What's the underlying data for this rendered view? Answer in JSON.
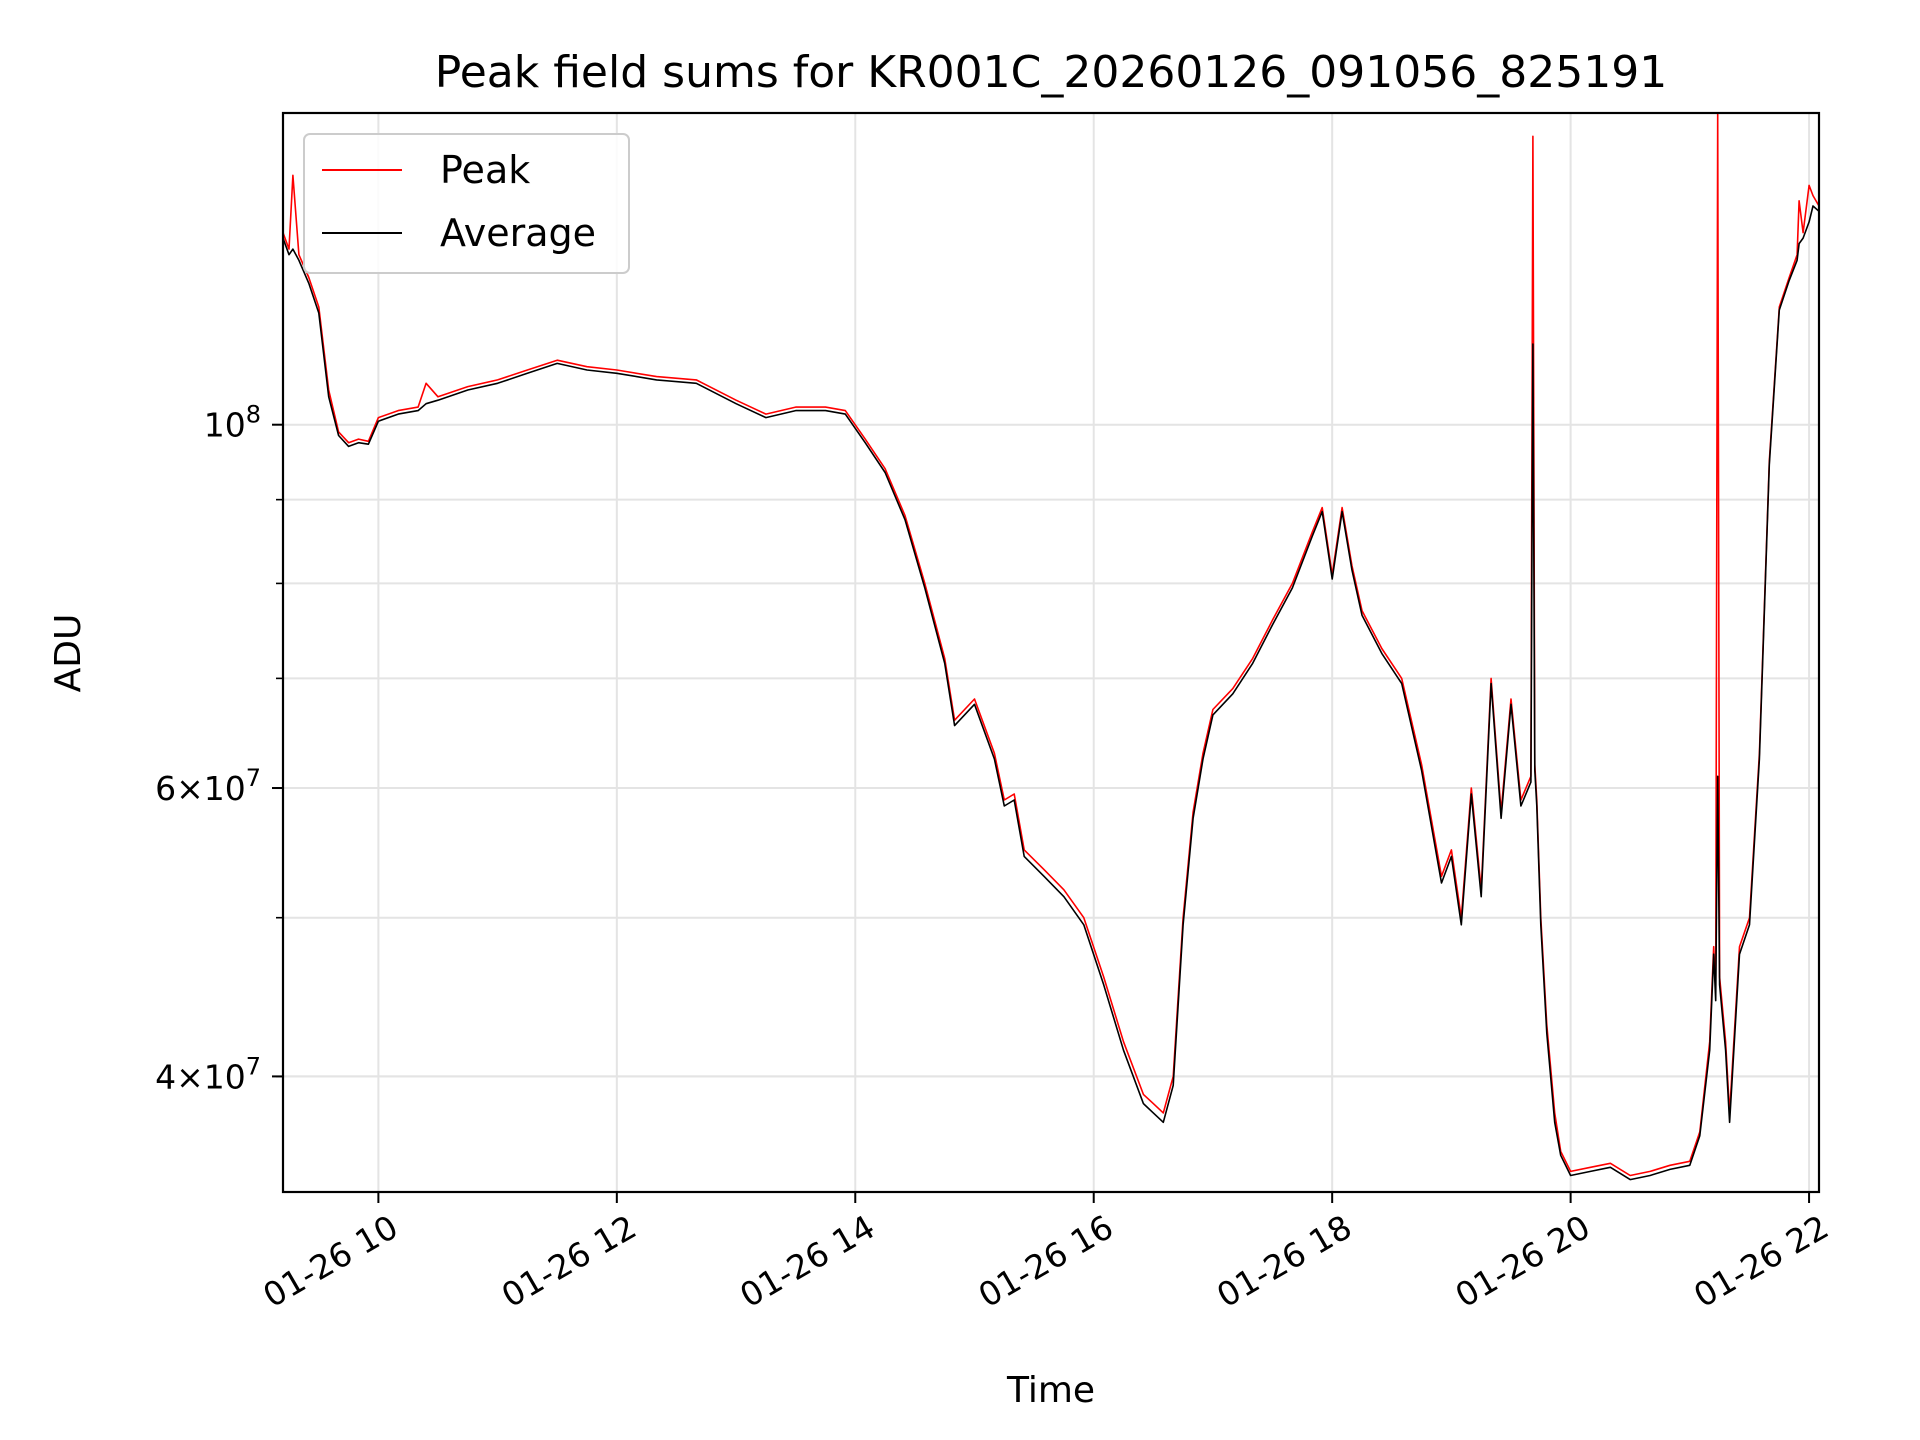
{
  "chart_data": {
    "type": "line",
    "title": "Peak field sums for KR001C_20260126_091056_825191",
    "xlabel": "Time",
    "ylabel": "ADU",
    "x_ticks": [
      "01-26 10",
      "01-26 12",
      "01-26 14",
      "01-26 16",
      "01-26 18",
      "01-26 20",
      "01-26 22"
    ],
    "y_ticks_major": [
      {
        "value": 100000000,
        "label_base": "10",
        "label_exp": "8"
      },
      {
        "value": 60000000,
        "label_base": "6×10",
        "label_exp": "7"
      },
      {
        "value": 40000000,
        "label_base": "4×10",
        "label_exp": "7"
      }
    ],
    "y_scale": "log",
    "xlim": [
      "2026-01-26 09:12",
      "2026-01-26 22:05"
    ],
    "ylim": [
      34000000,
      155000000
    ],
    "grid": true,
    "legend_position": "upper-left",
    "colors": {
      "Peak": "#ff0000",
      "Average": "#000000"
    },
    "series": [
      {
        "name": "Peak",
        "x": [
          "2026-01-26 09:12",
          "2026-01-26 09:15",
          "2026-01-26 09:17",
          "2026-01-26 09:20",
          "2026-01-26 09:25",
          "2026-01-26 09:30",
          "2026-01-26 09:35",
          "2026-01-26 09:40",
          "2026-01-26 09:45",
          "2026-01-26 09:50",
          "2026-01-26 09:55",
          "2026-01-26 10:00",
          "2026-01-26 10:10",
          "2026-01-26 10:20",
          "2026-01-26 10:24",
          "2026-01-26 10:30",
          "2026-01-26 10:45",
          "2026-01-26 11:00",
          "2026-01-26 11:15",
          "2026-01-26 11:30",
          "2026-01-26 11:45",
          "2026-01-26 12:00",
          "2026-01-26 12:20",
          "2026-01-26 12:40",
          "2026-01-26 13:00",
          "2026-01-26 13:15",
          "2026-01-26 13:30",
          "2026-01-26 13:45",
          "2026-01-26 13:55",
          "2026-01-26 14:05",
          "2026-01-26 14:15",
          "2026-01-26 14:25",
          "2026-01-26 14:35",
          "2026-01-26 14:45",
          "2026-01-26 14:50",
          "2026-01-26 15:00",
          "2026-01-26 15:10",
          "2026-01-26 15:15",
          "2026-01-26 15:20",
          "2026-01-26 15:25",
          "2026-01-26 15:35",
          "2026-01-26 15:45",
          "2026-01-26 15:55",
          "2026-01-26 16:05",
          "2026-01-26 16:15",
          "2026-01-26 16:25",
          "2026-01-26 16:30",
          "2026-01-26 16:35",
          "2026-01-26 16:40",
          "2026-01-26 16:45",
          "2026-01-26 16:50",
          "2026-01-26 16:55",
          "2026-01-26 17:00",
          "2026-01-26 17:10",
          "2026-01-26 17:20",
          "2026-01-26 17:30",
          "2026-01-26 17:40",
          "2026-01-26 17:50",
          "2026-01-26 17:55",
          "2026-01-26 18:00",
          "2026-01-26 18:05",
          "2026-01-26 18:10",
          "2026-01-26 18:15",
          "2026-01-26 18:25",
          "2026-01-26 18:35",
          "2026-01-26 18:45",
          "2026-01-26 18:55",
          "2026-01-26 19:00",
          "2026-01-26 19:05",
          "2026-01-26 19:10",
          "2026-01-26 19:15",
          "2026-01-26 19:20",
          "2026-01-26 19:25",
          "2026-01-26 19:30",
          "2026-01-26 19:35",
          "2026-01-26 19:40",
          "2026-01-26 19:41",
          "2026-01-26 19:42",
          "2026-01-26 19:43",
          "2026-01-26 19:45",
          "2026-01-26 19:48",
          "2026-01-26 19:52",
          "2026-01-26 19:55",
          "2026-01-26 20:00",
          "2026-01-26 20:10",
          "2026-01-26 20:20",
          "2026-01-26 20:30",
          "2026-01-26 20:40",
          "2026-01-26 20:50",
          "2026-01-26 21:00",
          "2026-01-26 21:05",
          "2026-01-26 21:10",
          "2026-01-26 21:12",
          "2026-01-26 21:13",
          "2026-01-26 21:14",
          "2026-01-26 21:15",
          "2026-01-26 21:18",
          "2026-01-26 21:20",
          "2026-01-26 21:25",
          "2026-01-26 21:30",
          "2026-01-26 21:35",
          "2026-01-26 21:40",
          "2026-01-26 21:45",
          "2026-01-26 21:50",
          "2026-01-26 21:54",
          "2026-01-26 21:55",
          "2026-01-26 21:57",
          "2026-01-26 22:00",
          "2026-01-26 22:02",
          "2026-01-26 22:05"
        ],
        "y": [
          131000000,
          128000000,
          142000000,
          127000000,
          123000000,
          118000000,
          105000000,
          99000000,
          97500000,
          98000000,
          97700000,
          101000000,
          102000000,
          102500000,
          106000000,
          104000000,
          105500000,
          106500000,
          108000000,
          109500000,
          108500000,
          108000000,
          107000000,
          106500000,
          103500000,
          101500000,
          102500000,
          102500000,
          102000000,
          98000000,
          94000000,
          88000000,
          80000000,
          72000000,
          66000000,
          68000000,
          63000000,
          59000000,
          59500000,
          55000000,
          53500000,
          52000000,
          50000000,
          46000000,
          42000000,
          39000000,
          38500000,
          38000000,
          40000000,
          50000000,
          58000000,
          63000000,
          67000000,
          69000000,
          72000000,
          76000000,
          80000000,
          86000000,
          89000000,
          81000000,
          89000000,
          82000000,
          77000000,
          73000000,
          70000000,
          62000000,
          53000000,
          55000000,
          50000000,
          60000000,
          52000000,
          70000000,
          58000000,
          68000000,
          59000000,
          61000000,
          150000000,
          62000000,
          59000000,
          50000000,
          43000000,
          38000000,
          36000000,
          35000000,
          35200000,
          35400000,
          34800000,
          35000000,
          35300000,
          35500000,
          37000000,
          42000000,
          48000000,
          45000000,
          155000000,
          46000000,
          42000000,
          38000000,
          48000000,
          50000000,
          63000000,
          95000000,
          118000000,
          123000000,
          127000000,
          137000000,
          131000000,
          140000000,
          138000000,
          136000000
        ]
      },
      {
        "name": "Average",
        "x": [
          "2026-01-26 09:12",
          "2026-01-26 09:15",
          "2026-01-26 09:17",
          "2026-01-26 09:20",
          "2026-01-26 09:25",
          "2026-01-26 09:30",
          "2026-01-26 09:35",
          "2026-01-26 09:40",
          "2026-01-26 09:45",
          "2026-01-26 09:50",
          "2026-01-26 09:55",
          "2026-01-26 10:00",
          "2026-01-26 10:10",
          "2026-01-26 10:20",
          "2026-01-26 10:24",
          "2026-01-26 10:30",
          "2026-01-26 10:45",
          "2026-01-26 11:00",
          "2026-01-26 11:15",
          "2026-01-26 11:30",
          "2026-01-26 11:45",
          "2026-01-26 12:00",
          "2026-01-26 12:20",
          "2026-01-26 12:40",
          "2026-01-26 13:00",
          "2026-01-26 13:15",
          "2026-01-26 13:30",
          "2026-01-26 13:45",
          "2026-01-26 13:55",
          "2026-01-26 14:05",
          "2026-01-26 14:15",
          "2026-01-26 14:25",
          "2026-01-26 14:35",
          "2026-01-26 14:45",
          "2026-01-26 14:50",
          "2026-01-26 15:00",
          "2026-01-26 15:10",
          "2026-01-26 15:15",
          "2026-01-26 15:20",
          "2026-01-26 15:25",
          "2026-01-26 15:35",
          "2026-01-26 15:45",
          "2026-01-26 15:55",
          "2026-01-26 16:05",
          "2026-01-26 16:15",
          "2026-01-26 16:25",
          "2026-01-26 16:30",
          "2026-01-26 16:35",
          "2026-01-26 16:40",
          "2026-01-26 16:45",
          "2026-01-26 16:50",
          "2026-01-26 16:55",
          "2026-01-26 17:00",
          "2026-01-26 17:10",
          "2026-01-26 17:20",
          "2026-01-26 17:30",
          "2026-01-26 17:40",
          "2026-01-26 17:50",
          "2026-01-26 17:55",
          "2026-01-26 18:00",
          "2026-01-26 18:05",
          "2026-01-26 18:10",
          "2026-01-26 18:15",
          "2026-01-26 18:25",
          "2026-01-26 18:35",
          "2026-01-26 18:45",
          "2026-01-26 18:55",
          "2026-01-26 19:00",
          "2026-01-26 19:05",
          "2026-01-26 19:10",
          "2026-01-26 19:15",
          "2026-01-26 19:20",
          "2026-01-26 19:25",
          "2026-01-26 19:30",
          "2026-01-26 19:35",
          "2026-01-26 19:40",
          "2026-01-26 19:41",
          "2026-01-26 19:42",
          "2026-01-26 19:43",
          "2026-01-26 19:45",
          "2026-01-26 19:48",
          "2026-01-26 19:52",
          "2026-01-26 19:55",
          "2026-01-26 20:00",
          "2026-01-26 20:10",
          "2026-01-26 20:20",
          "2026-01-26 20:30",
          "2026-01-26 20:40",
          "2026-01-26 20:50",
          "2026-01-26 21:00",
          "2026-01-26 21:05",
          "2026-01-26 21:10",
          "2026-01-26 21:12",
          "2026-01-26 21:13",
          "2026-01-26 21:14",
          "2026-01-26 21:15",
          "2026-01-26 21:18",
          "2026-01-26 21:20",
          "2026-01-26 21:25",
          "2026-01-26 21:30",
          "2026-01-26 21:35",
          "2026-01-26 21:40",
          "2026-01-26 21:45",
          "2026-01-26 21:50",
          "2026-01-26 21:54",
          "2026-01-26 21:55",
          "2026-01-26 21:57",
          "2026-01-26 22:00",
          "2026-01-26 22:02",
          "2026-01-26 22:05"
        ],
        "y": [
          130000000,
          127000000,
          128000000,
          126000000,
          122000000,
          117000000,
          104000000,
          98500000,
          97000000,
          97500000,
          97300000,
          100500000,
          101500000,
          102000000,
          103000000,
          103500000,
          105000000,
          106000000,
          107500000,
          109000000,
          108000000,
          107500000,
          106500000,
          106000000,
          103000000,
          101000000,
          102000000,
          102000000,
          101500000,
          97500000,
          93500000,
          87500000,
          79500000,
          71500000,
          65500000,
          67500000,
          62500000,
          58500000,
          59000000,
          54500000,
          53000000,
          51500000,
          49500000,
          45500000,
          41500000,
          38500000,
          38000000,
          37500000,
          39500000,
          49500000,
          57500000,
          62500000,
          66500000,
          68500000,
          71500000,
          75500000,
          79500000,
          85500000,
          88500000,
          80500000,
          88500000,
          81500000,
          76500000,
          72500000,
          69500000,
          61500000,
          52500000,
          54500000,
          49500000,
          59500000,
          51500000,
          69500000,
          57500000,
          67500000,
          58500000,
          60500000,
          112000000,
          61500000,
          58500000,
          49500000,
          42500000,
          37500000,
          35800000,
          34800000,
          35000000,
          35200000,
          34600000,
          34800000,
          35100000,
          35300000,
          36800000,
          41500000,
          47500000,
          44500000,
          61000000,
          45500000,
          41500000,
          37500000,
          47500000,
          49500000,
          62500000,
          94500000,
          117500000,
          122500000,
          126000000,
          129000000,
          130000000,
          133000000,
          136000000,
          135000000
        ]
      }
    ]
  }
}
